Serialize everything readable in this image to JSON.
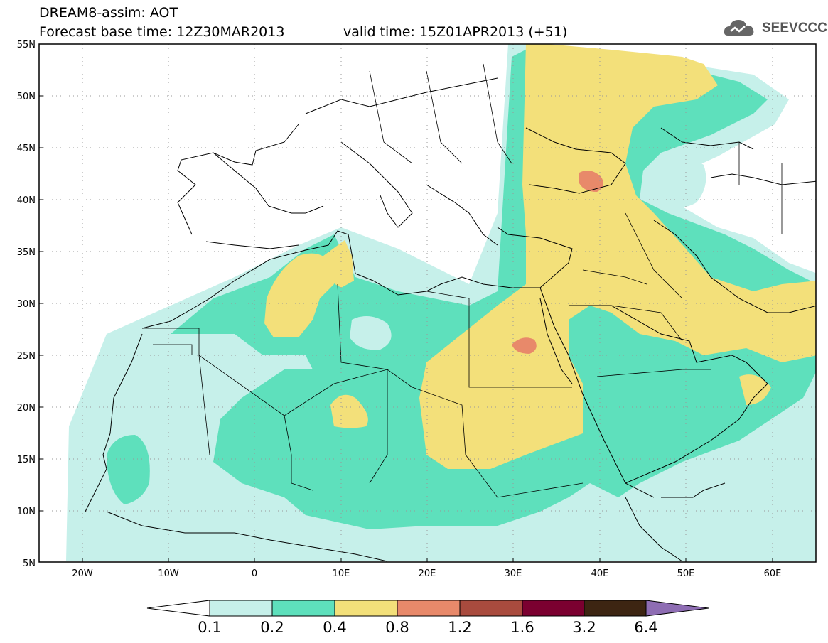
{
  "header": {
    "line1": "DREAM8-assim: AOT",
    "base_time": "Forecast base time: 12Z30MAR2013",
    "valid_time": "valid time: 15Z01APR2013 (+51)"
  },
  "logo": {
    "text": "SEEVCCC",
    "icon": "cloud-logo-icon"
  },
  "map": {
    "lat_labels": [
      "55N",
      "50N",
      "45N",
      "40N",
      "35N",
      "30N",
      "25N",
      "20N",
      "15N",
      "10N",
      "5N"
    ],
    "lon_labels": [
      "20W",
      "10W",
      "0",
      "10E",
      "20E",
      "30E",
      "40E",
      "50E",
      "60E"
    ],
    "lon_range": [
      -25,
      65
    ],
    "lat_range": [
      5,
      55
    ],
    "grid": "dotted"
  },
  "colorbar": {
    "labels": [
      "0.1",
      "0.2",
      "0.4",
      "0.8",
      "1.2",
      "1.6",
      "3.2",
      "6.4"
    ],
    "colors": {
      "below": "#ffffff",
      "c0": "#c6f0ea",
      "c1": "#5ee0bc",
      "c2": "#f3e07a",
      "c3": "#e8896a",
      "c4": "#a94b3e",
      "c5": "#7b0030",
      "c6": "#3d2512",
      "above": "#8e6db3"
    }
  }
}
